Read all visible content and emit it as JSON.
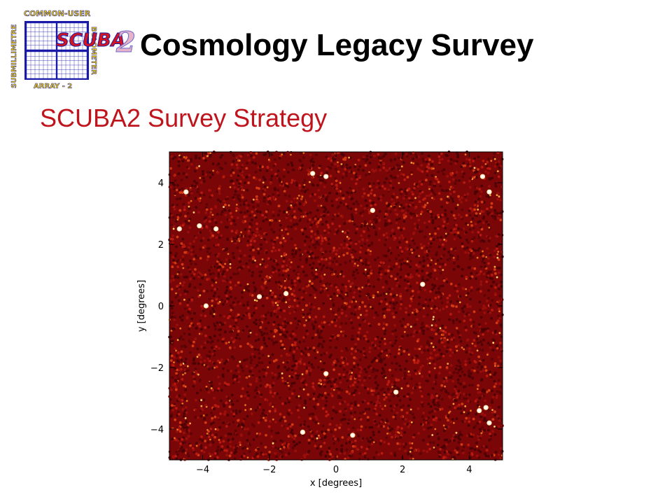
{
  "header": {
    "title": "Cosmology Legacy Survey",
    "logo": {
      "top_text": "COMMON-USER",
      "left_text": "SUBMILLIMETRE",
      "right_text": "BOLOMETER",
      "bottom_text": "ARRAY - 2",
      "name": "SCUBA",
      "numeral": "2"
    }
  },
  "slide": {
    "subtitle": "SCUBA2 Survey Strategy"
  },
  "colors": {
    "title": "#000000",
    "subtitle": "#c0141c",
    "map_background": "#7a0608",
    "logo_yellow": "#f5d400",
    "logo_blue": "#1a1aa8",
    "logo_red": "#d8141c"
  },
  "chart_data": {
    "type": "heatmap",
    "title": "",
    "xlabel": "x  [degrees]",
    "ylabel": "y  [degrees]",
    "xlim": [
      -5,
      5
    ],
    "ylim": [
      -5,
      5
    ],
    "x_ticks": [
      -4,
      -2,
      0,
      2,
      4
    ],
    "y_ticks": [
      -4,
      -2,
      0,
      2,
      4
    ],
    "x_tick_labels": [
      "−4",
      "−2",
      "0",
      "2",
      "4"
    ],
    "y_tick_labels": [
      "−4",
      "−2",
      "0",
      "2",
      "4"
    ],
    "colormap": "dark red to yellow-white (hot)",
    "grid": false,
    "legend": "none",
    "bright_sources": [
      {
        "x": -4.5,
        "y": 3.7
      },
      {
        "x": -4.7,
        "y": 2.5
      },
      {
        "x": -4.1,
        "y": 2.6
      },
      {
        "x": -3.6,
        "y": 2.5
      },
      {
        "x": -3.9,
        "y": 0.0
      },
      {
        "x": -2.3,
        "y": 0.3
      },
      {
        "x": -1.5,
        "y": 0.4
      },
      {
        "x": -0.7,
        "y": 4.3
      },
      {
        "x": -0.3,
        "y": 4.2
      },
      {
        "x": 1.1,
        "y": 3.1
      },
      {
        "x": 2.6,
        "y": 0.7
      },
      {
        "x": -0.3,
        "y": -2.2
      },
      {
        "x": 1.8,
        "y": -2.8
      },
      {
        "x": 4.5,
        "y": -3.3
      },
      {
        "x": 4.3,
        "y": -3.4
      },
      {
        "x": 4.6,
        "y": -3.8
      },
      {
        "x": 4.4,
        "y": 4.2
      },
      {
        "x": 4.6,
        "y": 3.7
      },
      {
        "x": -1.0,
        "y": -4.1
      },
      {
        "x": 0.5,
        "y": -4.2
      }
    ]
  }
}
